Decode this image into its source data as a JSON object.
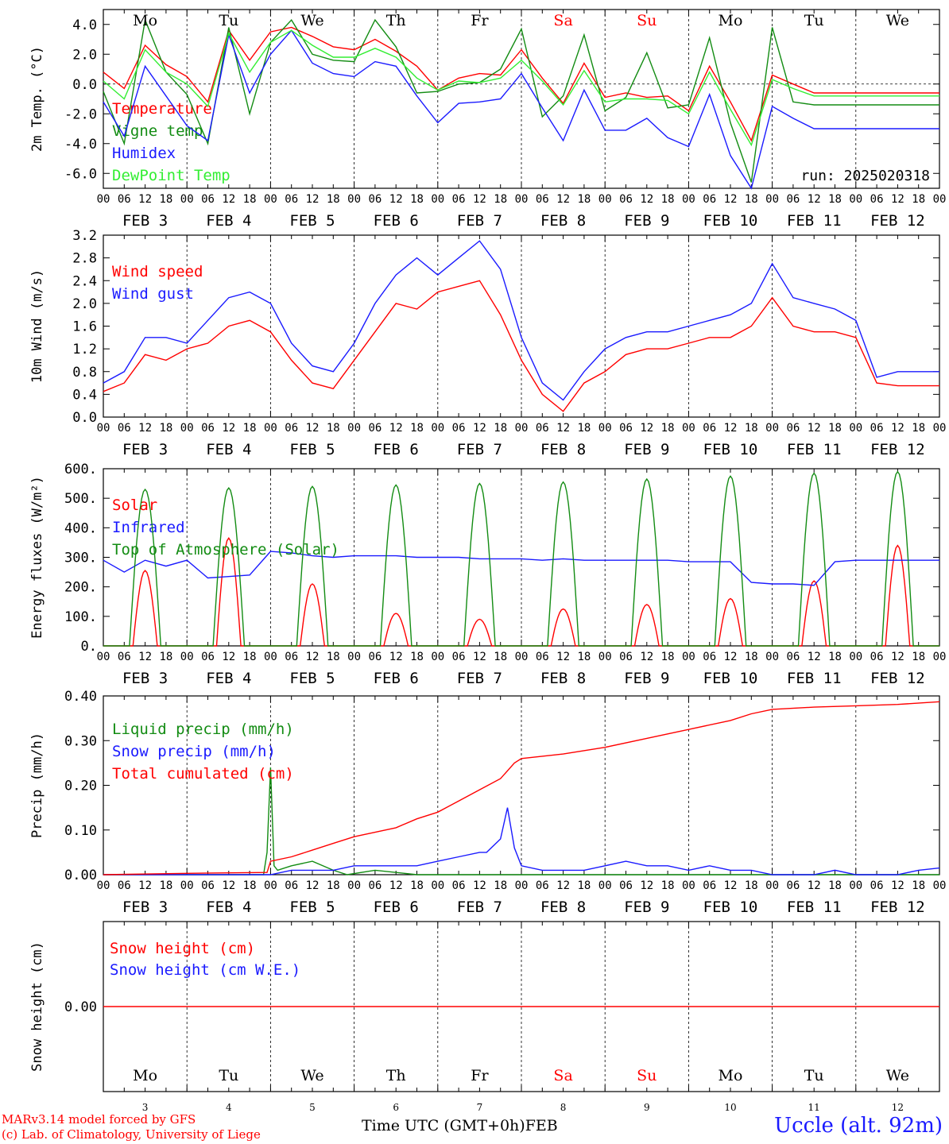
{
  "x_ticks": [
    "00",
    "06",
    "12",
    "18"
  ],
  "x_tick_end": "00",
  "day_labels": [
    "FEB  3",
    "FEB  4",
    "FEB  5",
    "FEB  6",
    "FEB  7",
    "FEB  8",
    "FEB  9",
    "FEB 10",
    "FEB 11",
    "FEB 12"
  ],
  "weekdays": [
    "Mo",
    "Tu",
    "We",
    "Th",
    "Fr",
    "Sa",
    "Su",
    "Mo",
    "Tu",
    "We"
  ],
  "weekday_colors": [
    "#000000",
    "#000000",
    "#000000",
    "#000000",
    "#000000",
    "#ff0000",
    "#ff0000",
    "#000000",
    "#000000",
    "#000000"
  ],
  "day_numbers": [
    "3",
    "4",
    "5",
    "6",
    "7",
    "8",
    "9",
    "10",
    "11",
    "12"
  ],
  "colors": {
    "red": "#ff0000",
    "green": "#138c13",
    "blue": "#1a1aff",
    "lightgreen": "#33ee33"
  },
  "footer": {
    "model": "MARv3.14 model forced by GFS",
    "copyright": "(c) Lab. of Climatology, University of Liege",
    "xlabel": "Time UTC (GMT+0h)",
    "month": "FEB",
    "station": "Uccle (alt. 92m)"
  },
  "chart_data": [
    {
      "type": "line",
      "ylabel": "2m Temp. (°C)",
      "ylim": [
        -7,
        5
      ],
      "yticks": [
        "4.0",
        "2.0",
        "0.0",
        "-2.0",
        "-4.0",
        "-6.0"
      ],
      "ytick_values": [
        4,
        2,
        0,
        -2,
        -4,
        -6
      ],
      "zero_line": true,
      "annotation": "run: 2025020318",
      "series": [
        {
          "name": "Temperature",
          "color": "#ff0000",
          "x": [
            0,
            6,
            12,
            18,
            24,
            30,
            36,
            42,
            48,
            54,
            60,
            66,
            72,
            78,
            84,
            90,
            96,
            102,
            108,
            114,
            120,
            126,
            132,
            138,
            144,
            150,
            156,
            162,
            168,
            174,
            180,
            186,
            192,
            198,
            204,
            210,
            216,
            222,
            228,
            234,
            240
          ],
          "y": [
            0.8,
            -0.3,
            2.6,
            1.3,
            0.5,
            -1.2,
            3.6,
            1.6,
            3.5,
            3.8,
            3.2,
            2.5,
            2.3,
            3.0,
            2.2,
            1.2,
            -0.4,
            0.4,
            0.7,
            0.6,
            2.3,
            0.4,
            -1.3,
            1.4,
            -0.9,
            -0.6,
            -0.9,
            -0.8,
            -1.8,
            1.2,
            -1.2,
            -3.8,
            0.6,
            0.0,
            -0.6,
            -0.6,
            -0.6,
            -0.6,
            -0.6,
            -0.6,
            -0.6
          ]
        },
        {
          "name": "Vigne temp",
          "color": "#138c13",
          "x": [
            0,
            6,
            12,
            18,
            24,
            30,
            36,
            42,
            48,
            54,
            60,
            66,
            72,
            78,
            84,
            90,
            96,
            102,
            108,
            114,
            120,
            126,
            132,
            138,
            144,
            150,
            156,
            162,
            168,
            174,
            180,
            186,
            192,
            198,
            204,
            210,
            216,
            222,
            228,
            234,
            240
          ],
          "y": [
            -0.5,
            -4.0,
            4.3,
            0.8,
            -0.7,
            -4.0,
            3.8,
            -2.0,
            2.8,
            4.3,
            2.0,
            1.6,
            1.5,
            4.3,
            2.5,
            -0.6,
            -0.5,
            0.0,
            0.1,
            1.0,
            3.7,
            -2.2,
            -0.8,
            3.3,
            -1.8,
            -0.9,
            2.1,
            -1.6,
            -1.4,
            3.1,
            -2.6,
            -6.6,
            3.8,
            -1.2,
            -1.4,
            -1.4,
            -1.4,
            -1.4,
            -1.4,
            -1.4,
            -1.4
          ]
        },
        {
          "name": "Humidex",
          "color": "#1a1aff",
          "x": [
            0,
            6,
            12,
            18,
            24,
            30,
            36,
            42,
            48,
            54,
            60,
            66,
            72,
            78,
            84,
            90,
            96,
            102,
            108,
            114,
            120,
            126,
            132,
            138,
            144,
            150,
            156,
            162,
            168,
            174,
            180,
            186,
            192,
            198,
            204,
            210,
            216,
            222,
            228,
            234,
            240
          ],
          "y": [
            -1.2,
            -3.5,
            1.2,
            -0.8,
            -2.8,
            -3.8,
            3.3,
            -0.6,
            2.0,
            3.6,
            1.4,
            0.7,
            0.5,
            1.5,
            1.2,
            -0.8,
            -2.6,
            -1.3,
            -1.2,
            -1.0,
            0.7,
            -1.6,
            -3.8,
            -0.4,
            -3.1,
            -3.1,
            -2.3,
            -3.6,
            -4.2,
            -0.7,
            -4.8,
            -7.0,
            -1.5,
            -2.3,
            -3.0,
            -3.0,
            -3.0,
            -3.0,
            -3.0,
            -3.0,
            -3.0
          ]
        },
        {
          "name": "DewPoint Temp",
          "color": "#33ee33",
          "x": [
            0,
            6,
            12,
            18,
            24,
            30,
            36,
            42,
            48,
            54,
            60,
            66,
            72,
            78,
            84,
            90,
            96,
            102,
            108,
            114,
            120,
            126,
            132,
            138,
            144,
            150,
            156,
            162,
            168,
            174,
            180,
            186,
            192,
            198,
            204,
            210,
            216,
            222,
            228,
            234,
            240
          ],
          "y": [
            0.2,
            -1.0,
            2.3,
            0.8,
            0.0,
            -1.5,
            3.4,
            0.8,
            2.8,
            3.6,
            2.6,
            1.8,
            1.8,
            2.4,
            1.8,
            0.4,
            -0.4,
            0.2,
            0.1,
            0.4,
            1.6,
            0.2,
            -1.4,
            0.9,
            -1.2,
            -1.0,
            -1.0,
            -1.1,
            -2.0,
            0.8,
            -1.7,
            -4.1,
            0.3,
            -0.3,
            -0.8,
            -0.8,
            -0.8,
            -0.8,
            -0.8,
            -0.8,
            -0.8
          ]
        }
      ]
    },
    {
      "type": "line",
      "ylabel": "10m Wind (m/s)",
      "ylim": [
        0,
        3.2
      ],
      "yticks": [
        "3.2",
        "2.8",
        "2.4",
        "2.0",
        "1.6",
        "1.2",
        "0.8",
        "0.4",
        "0.0"
      ],
      "ytick_values": [
        3.2,
        2.8,
        2.4,
        2.0,
        1.6,
        1.2,
        0.8,
        0.4,
        0.0
      ],
      "series": [
        {
          "name": "Wind speed",
          "color": "#ff0000",
          "x": [
            0,
            6,
            12,
            18,
            24,
            30,
            36,
            42,
            48,
            54,
            60,
            66,
            72,
            78,
            84,
            90,
            96,
            102,
            108,
            114,
            120,
            126,
            132,
            138,
            144,
            150,
            156,
            162,
            168,
            174,
            180,
            186,
            192,
            198,
            204,
            210,
            216,
            222,
            228,
            234,
            240
          ],
          "y": [
            0.45,
            0.6,
            1.1,
            1.0,
            1.2,
            1.3,
            1.6,
            1.7,
            1.5,
            1.0,
            0.6,
            0.5,
            1.0,
            1.5,
            2.0,
            1.9,
            2.2,
            2.3,
            2.4,
            1.8,
            1.0,
            0.4,
            0.1,
            0.6,
            0.8,
            1.1,
            1.2,
            1.2,
            1.3,
            1.4,
            1.4,
            1.6,
            2.1,
            1.6,
            1.5,
            1.5,
            1.4,
            0.6,
            0.55,
            0.55,
            0.55
          ]
        },
        {
          "name": "Wind gust",
          "color": "#1a1aff",
          "x": [
            0,
            6,
            12,
            18,
            24,
            30,
            36,
            42,
            48,
            54,
            60,
            66,
            72,
            78,
            84,
            90,
            96,
            102,
            108,
            114,
            120,
            126,
            132,
            138,
            144,
            150,
            156,
            162,
            168,
            174,
            180,
            186,
            192,
            198,
            204,
            210,
            216,
            222,
            228,
            234,
            240
          ],
          "y": [
            0.6,
            0.8,
            1.4,
            1.4,
            1.3,
            1.7,
            2.1,
            2.2,
            2.0,
            1.3,
            0.9,
            0.8,
            1.3,
            2.0,
            2.5,
            2.8,
            2.5,
            2.8,
            3.1,
            2.6,
            1.4,
            0.6,
            0.3,
            0.8,
            1.2,
            1.4,
            1.5,
            1.5,
            1.6,
            1.7,
            1.8,
            2.0,
            2.7,
            2.1,
            2.0,
            1.9,
            1.7,
            0.7,
            0.8,
            0.8,
            0.8
          ]
        }
      ]
    },
    {
      "type": "line",
      "ylabel": "Energy fluxes (W/m²)",
      "ylim": [
        0,
        600
      ],
      "yticks": [
        "600.",
        "500.",
        "400.",
        "300.",
        "200.",
        "100.",
        "0."
      ],
      "ytick_values": [
        600,
        500,
        400,
        300,
        200,
        100,
        0
      ],
      "series": [
        {
          "name": "Solar",
          "color": "#ff0000",
          "peaks": [
            255,
            365,
            210,
            110,
            90,
            125,
            140,
            160,
            220,
            340
          ],
          "width_hours": 7
        },
        {
          "name": "Infrared",
          "color": "#1a1aff",
          "x": [
            0,
            6,
            12,
            18,
            24,
            30,
            36,
            42,
            48,
            54,
            60,
            66,
            72,
            78,
            84,
            90,
            96,
            102,
            108,
            114,
            120,
            126,
            132,
            138,
            144,
            150,
            156,
            162,
            168,
            174,
            180,
            186,
            192,
            198,
            204,
            210,
            216,
            222,
            228,
            234,
            240
          ],
          "y": [
            290,
            250,
            290,
            270,
            290,
            230,
            235,
            240,
            320,
            315,
            305,
            300,
            305,
            305,
            305,
            300,
            300,
            300,
            295,
            295,
            295,
            290,
            295,
            290,
            290,
            290,
            290,
            290,
            285,
            285,
            285,
            215,
            210,
            210,
            205,
            285,
            290,
            290,
            290,
            290,
            290
          ]
        },
        {
          "name": "Top of Atmosphere (Solar)",
          "color": "#138c13",
          "peaks": [
            530,
            535,
            540,
            545,
            550,
            555,
            565,
            575,
            585,
            590
          ],
          "width_hours": 9
        }
      ]
    },
    {
      "type": "line",
      "ylabel": "Precip (mm/h)",
      "ylim": [
        0,
        0.4
      ],
      "yticks": [
        "0.40",
        "0.30",
        "0.20",
        "0.10",
        "0.00"
      ],
      "ytick_values": [
        0.4,
        0.3,
        0.2,
        0.1,
        0.0
      ],
      "series": [
        {
          "name": "Liquid precip (mm/h)",
          "color": "#138c13",
          "x": [
            0,
            46,
            47,
            48,
            49,
            50,
            54,
            60,
            66,
            70,
            78,
            90,
            96,
            102,
            108,
            114,
            120,
            126,
            132,
            138,
            144,
            150,
            156,
            162,
            168,
            174,
            180,
            186,
            192,
            198,
            204,
            210,
            216,
            222,
            228,
            234,
            240
          ],
          "y": [
            0,
            0,
            0.05,
            0.24,
            0.02,
            0.01,
            0.02,
            0.03,
            0.01,
            0.0,
            0.01,
            0.0,
            0.0,
            0.0,
            0.0,
            0.0,
            0.0,
            0.0,
            0.0,
            0.0,
            0.0,
            0.0,
            0.0,
            0.0,
            0.0,
            0.0,
            0.0,
            0.0,
            0.0,
            0.0,
            0.0,
            0.0,
            0.0,
            0.0,
            0.0,
            0.0,
            0.0
          ]
        },
        {
          "name": "Snow precip (mm/h)",
          "color": "#1a1aff",
          "x": [
            0,
            46,
            48,
            54,
            60,
            66,
            72,
            78,
            84,
            90,
            96,
            102,
            108,
            110,
            114,
            116,
            118,
            120,
            126,
            132,
            138,
            144,
            150,
            156,
            162,
            168,
            174,
            180,
            186,
            192,
            198,
            204,
            210,
            216,
            222,
            228,
            234,
            240
          ],
          "y": [
            0,
            0,
            0.0,
            0.01,
            0.01,
            0.01,
            0.02,
            0.02,
            0.02,
            0.02,
            0.03,
            0.04,
            0.05,
            0.05,
            0.08,
            0.15,
            0.06,
            0.02,
            0.01,
            0.01,
            0.01,
            0.02,
            0.03,
            0.02,
            0.02,
            0.01,
            0.02,
            0.01,
            0.01,
            0.0,
            0.0,
            0.0,
            0.01,
            0.0,
            0.0,
            0.0,
            0.01,
            0.015
          ]
        },
        {
          "name": "Total cumulated (cm)",
          "color": "#ff0000",
          "x": [
            0,
            24,
            47,
            48,
            54,
            60,
            66,
            72,
            78,
            84,
            90,
            96,
            102,
            108,
            114,
            118,
            120,
            132,
            144,
            156,
            168,
            180,
            186,
            192,
            204,
            216,
            228,
            240
          ],
          "y": [
            0.0,
            0.003,
            0.005,
            0.03,
            0.04,
            0.055,
            0.07,
            0.085,
            0.095,
            0.105,
            0.125,
            0.14,
            0.165,
            0.19,
            0.215,
            0.25,
            0.26,
            0.27,
            0.285,
            0.305,
            0.325,
            0.345,
            0.36,
            0.37,
            0.375,
            0.378,
            0.381,
            0.387
          ]
        }
      ]
    },
    {
      "type": "line",
      "ylabel": "Snow height (cm)",
      "ylim": [
        -1,
        1
      ],
      "yticks": [
        "0.00"
      ],
      "ytick_values": [
        0
      ],
      "series": [
        {
          "name": "Snow height (cm)",
          "color": "#ff0000",
          "x": [
            0,
            240
          ],
          "y": [
            0,
            0
          ]
        },
        {
          "name": "Snow height (cm W.E.)",
          "color": "#1a1aff",
          "x": [],
          "y": []
        }
      ]
    }
  ]
}
